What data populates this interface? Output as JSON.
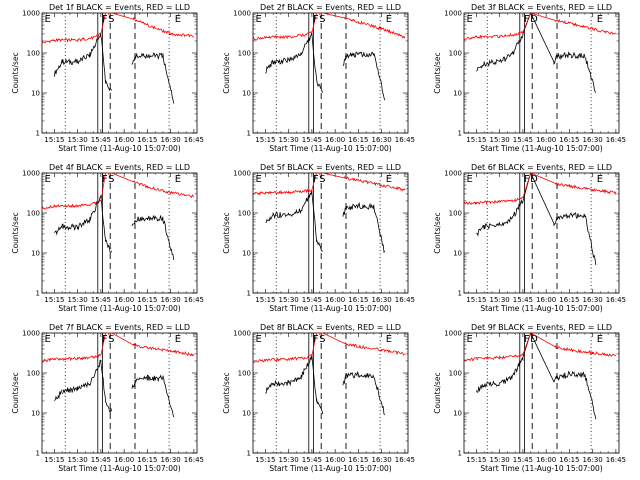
{
  "colors": {
    "events": "#000000",
    "lld": "#ff0000",
    "axes": "#000000",
    "background": "#ffffff"
  },
  "chart_data": [
    {
      "type": "line",
      "title": "Det 1f BLACK = Events, RED = LLD",
      "xlabel": "Start Time (11-Aug-10 15:07:00)",
      "ylabel": "Counts/sec",
      "yscale": "log",
      "ylim": [
        1,
        1000
      ],
      "xlim": [
        "15:07",
        "16:47"
      ],
      "xtick_labels": [
        "15:15",
        "15:30",
        "15:45",
        "16:00",
        "16:15",
        "16:30",
        "16:45"
      ],
      "ytick_labels": [
        "1",
        "10",
        "100",
        "1000"
      ],
      "markers": [
        "E",
        "F",
        "S",
        "E"
      ],
      "grid": false,
      "series": [
        {
          "name": "Events",
          "color": "#000000",
          "x": [
            "15:15",
            "15:20",
            "15:30",
            "15:38",
            "15:45",
            "15:48",
            "15:52",
            "16:05",
            "16:07",
            "16:15",
            "16:25",
            "16:32"
          ],
          "y": [
            30,
            60,
            60,
            90,
            300,
            20,
            10,
            45,
            80,
            85,
            85,
            6
          ]
        },
        {
          "name": "LLD",
          "color": "#ff0000",
          "x": [
            "15:07",
            "15:15",
            "15:30",
            "15:40",
            "15:45",
            "15:48",
            "15:52",
            "16:06",
            "16:15",
            "16:30",
            "16:45"
          ],
          "y": [
            180,
            210,
            210,
            240,
            300,
            1000,
            1000,
            700,
            500,
            300,
            270
          ]
        }
      ]
    },
    {
      "type": "line",
      "title": "Det 2f BLACK = Events, RED = LLD",
      "xlabel": "Start Time (11-Aug-10 15:07:00)",
      "ylabel": "Counts/sec",
      "yscale": "log",
      "ylim": [
        1,
        1000
      ],
      "xlim": [
        "15:07",
        "16:47"
      ],
      "xtick_labels": [
        "15:15",
        "15:30",
        "15:45",
        "16:00",
        "16:15",
        "16:30",
        "16:45"
      ],
      "ytick_labels": [
        "1",
        "10",
        "100",
        "1000"
      ],
      "markers": [
        "E",
        "F",
        "S",
        "E"
      ],
      "grid": false,
      "series": [
        {
          "name": "Events",
          "color": "#000000",
          "x": [
            "15:15",
            "15:20",
            "15:30",
            "15:38",
            "15:45",
            "15:48",
            "15:52",
            "16:05",
            "16:07",
            "16:15",
            "16:25",
            "16:32"
          ],
          "y": [
            35,
            60,
            65,
            95,
            300,
            20,
            10,
            50,
            85,
            90,
            90,
            7
          ]
        },
        {
          "name": "LLD",
          "color": "#ff0000",
          "x": [
            "15:07",
            "15:15",
            "15:30",
            "15:40",
            "15:45",
            "15:48",
            "15:52",
            "16:06",
            "16:15",
            "16:30",
            "16:45"
          ],
          "y": [
            220,
            250,
            250,
            280,
            320,
            1000,
            1000,
            750,
            600,
            400,
            250
          ]
        }
      ]
    },
    {
      "type": "line",
      "title": "Det 3f BLACK = Events, RED = LLD",
      "xlabel": "Start Time (11-Aug-10 15:07:00)",
      "ylabel": "Counts/sec",
      "yscale": "log",
      "ylim": [
        1,
        1000
      ],
      "xlim": [
        "15:07",
        "16:47"
      ],
      "xtick_labels": [
        "15:15",
        "15:30",
        "15:45",
        "16:00",
        "16:15",
        "16:30",
        "16:45"
      ],
      "ytick_labels": [
        "1",
        "10",
        "100",
        "1000"
      ],
      "markers": [
        "E",
        "F",
        "D",
        "E"
      ],
      "grid": false,
      "series": [
        {
          "name": "Events",
          "color": "#000000",
          "x": [
            "15:15",
            "15:20",
            "15:30",
            "15:38",
            "15:45",
            "15:50",
            "16:05",
            "16:07",
            "16:15",
            "16:25",
            "16:32"
          ],
          "y": [
            35,
            55,
            60,
            90,
            300,
            1000,
            60,
            80,
            90,
            85,
            10
          ]
        },
        {
          "name": "LLD",
          "color": "#ff0000",
          "x": [
            "15:07",
            "15:15",
            "15:30",
            "15:40",
            "15:45",
            "15:50",
            "16:06",
            "16:15",
            "16:30",
            "16:45"
          ],
          "y": [
            230,
            250,
            260,
            290,
            330,
            1000,
            650,
            550,
            400,
            300
          ]
        }
      ]
    },
    {
      "type": "line",
      "title": "Det 4f BLACK = Events, RED = LLD",
      "xlabel": "Start Time (11-Aug-10 15:07:00)",
      "ylabel": "Counts/sec",
      "yscale": "log",
      "ylim": [
        1,
        1000
      ],
      "xlim": [
        "15:07",
        "16:47"
      ],
      "xtick_labels": [
        "15:15",
        "15:30",
        "15:45",
        "16:00",
        "16:15",
        "16:30",
        "16:45"
      ],
      "ytick_labels": [
        "1",
        "10",
        "100",
        "1000"
      ],
      "markers": [
        "E",
        "F",
        "S",
        "E"
      ],
      "grid": false,
      "series": [
        {
          "name": "Events",
          "color": "#000000",
          "x": [
            "15:15",
            "15:20",
            "15:30",
            "15:38",
            "15:45",
            "15:48",
            "15:52",
            "16:05",
            "16:07",
            "16:15",
            "16:25",
            "16:32"
          ],
          "y": [
            30,
            45,
            45,
            70,
            250,
            20,
            10,
            45,
            70,
            75,
            75,
            7
          ]
        },
        {
          "name": "LLD",
          "color": "#ff0000",
          "x": [
            "15:07",
            "15:15",
            "15:30",
            "15:40",
            "15:45",
            "15:48",
            "15:52",
            "16:06",
            "16:15",
            "16:30",
            "16:45"
          ],
          "y": [
            130,
            150,
            150,
            170,
            200,
            1000,
            1000,
            600,
            450,
            320,
            260
          ]
        }
      ]
    },
    {
      "type": "line",
      "title": "Det 5f BLACK = Events, RED = LLD",
      "xlabel": "Start Time (11-Aug-10 15:07:00)",
      "ylabel": "Counts/sec",
      "yscale": "log",
      "ylim": [
        1,
        1000
      ],
      "xlim": [
        "15:07",
        "16:47"
      ],
      "xtick_labels": [
        "15:15",
        "15:30",
        "15:45",
        "16:00",
        "16:15",
        "16:30",
        "16:45"
      ],
      "ytick_labels": [
        "1",
        "10",
        "100",
        "1000"
      ],
      "markers": [
        "E",
        "F",
        "S",
        "E"
      ],
      "grid": false,
      "series": [
        {
          "name": "Events",
          "color": "#000000",
          "x": [
            "15:15",
            "15:20",
            "15:30",
            "15:38",
            "15:45",
            "15:48",
            "15:52",
            "16:05",
            "16:07",
            "16:15",
            "16:25",
            "16:32"
          ],
          "y": [
            55,
            90,
            90,
            120,
            350,
            20,
            10,
            80,
            130,
            150,
            140,
            10
          ]
        },
        {
          "name": "LLD",
          "color": "#ff0000",
          "x": [
            "15:07",
            "15:15",
            "15:30",
            "15:40",
            "15:45",
            "15:48",
            "15:52",
            "16:06",
            "16:15",
            "16:30",
            "16:45"
          ],
          "y": [
            300,
            320,
            330,
            350,
            380,
            1000,
            1000,
            750,
            650,
            500,
            380
          ]
        }
      ]
    },
    {
      "type": "line",
      "title": "Det 6f BLACK = Events, RED = LLD",
      "xlabel": "Start Time (11-Aug-10 15:07:00)",
      "ylabel": "Counts/sec",
      "yscale": "log",
      "ylim": [
        1,
        1000
      ],
      "xlim": [
        "15:07",
        "16:47"
      ],
      "xtick_labels": [
        "15:15",
        "15:30",
        "15:45",
        "16:00",
        "16:15",
        "16:30",
        "16:45"
      ],
      "ytick_labels": [
        "1",
        "10",
        "100",
        "1000"
      ],
      "markers": [
        "E",
        "F",
        "D",
        "E"
      ],
      "grid": false,
      "series": [
        {
          "name": "Events",
          "color": "#000000",
          "x": [
            "15:15",
            "15:20",
            "15:30",
            "15:38",
            "15:45",
            "15:50",
            "16:05",
            "16:07",
            "16:15",
            "16:25",
            "16:32"
          ],
          "y": [
            30,
            45,
            50,
            75,
            200,
            1000,
            55,
            70,
            85,
            90,
            5
          ]
        },
        {
          "name": "LLD",
          "color": "#ff0000",
          "x": [
            "15:07",
            "15:15",
            "15:30",
            "15:40",
            "15:45",
            "15:50",
            "16:06",
            "16:15",
            "16:30",
            "16:45"
          ],
          "y": [
            170,
            180,
            190,
            210,
            240,
            1000,
            550,
            470,
            380,
            320
          ]
        }
      ]
    },
    {
      "type": "line",
      "title": "Det 7f BLACK = Events, RED = LLD",
      "xlabel": "Start Time (11-Aug-10 15:07:00)",
      "ylabel": "Counts/sec",
      "yscale": "log",
      "ylim": [
        1,
        1000
      ],
      "xlim": [
        "15:07",
        "16:47"
      ],
      "xtick_labels": [
        "15:15",
        "15:30",
        "15:45",
        "16:00",
        "16:15",
        "16:30",
        "16:45"
      ],
      "ytick_labels": [
        "1",
        "10",
        "100",
        "1000"
      ],
      "markers": [
        "E",
        "F",
        "S",
        "E"
      ],
      "grid": false,
      "series": [
        {
          "name": "Events",
          "color": "#000000",
          "x": [
            "15:15",
            "15:20",
            "15:30",
            "15:38",
            "15:45",
            "15:48",
            "15:52",
            "16:05",
            "16:07",
            "16:15",
            "16:25",
            "16:32"
          ],
          "y": [
            20,
            35,
            40,
            55,
            200,
            20,
            10,
            40,
            60,
            75,
            75,
            8
          ]
        },
        {
          "name": "LLD",
          "color": "#ff0000",
          "x": [
            "15:07",
            "15:15",
            "15:30",
            "15:40",
            "15:45",
            "15:48",
            "15:52",
            "16:06",
            "16:15",
            "16:30",
            "16:45"
          ],
          "y": [
            200,
            220,
            230,
            250,
            280,
            1000,
            1000,
            500,
            430,
            360,
            280
          ]
        }
      ]
    },
    {
      "type": "line",
      "title": "Det 8f BLACK = Events, RED = LLD",
      "xlabel": "Start Time (11-Aug-10 15:07:00)",
      "ylabel": "Counts/sec",
      "yscale": "log",
      "ylim": [
        1,
        1000
      ],
      "xlim": [
        "15:07",
        "16:47"
      ],
      "xtick_labels": [
        "15:15",
        "15:30",
        "15:45",
        "16:00",
        "16:15",
        "16:30",
        "16:45"
      ],
      "ytick_labels": [
        "1",
        "10",
        "100",
        "1000"
      ],
      "markers": [
        "E",
        "F",
        "S",
        "E"
      ],
      "grid": false,
      "series": [
        {
          "name": "Events",
          "color": "#000000",
          "x": [
            "15:15",
            "15:20",
            "15:30",
            "15:38",
            "15:45",
            "15:48",
            "15:52",
            "16:05",
            "16:07",
            "16:15",
            "16:25",
            "16:32"
          ],
          "y": [
            35,
            55,
            55,
            80,
            250,
            20,
            10,
            50,
            85,
            90,
            85,
            9
          ]
        },
        {
          "name": "LLD",
          "color": "#ff0000",
          "x": [
            "15:07",
            "15:15",
            "15:30",
            "15:40",
            "15:45",
            "15:48",
            "15:52",
            "16:06",
            "16:15",
            "16:30",
            "16:45"
          ],
          "y": [
            190,
            210,
            220,
            240,
            270,
            1000,
            1000,
            550,
            460,
            380,
            300
          ]
        }
      ]
    },
    {
      "type": "line",
      "title": "Det 9f BLACK = Events, RED = LLD",
      "xlabel": "Start Time (11-Aug-10 15:07:00)",
      "ylabel": "Counts/sec",
      "yscale": "log",
      "ylim": [
        1,
        1000
      ],
      "xlim": [
        "15:07",
        "16:47"
      ],
      "xtick_labels": [
        "15:15",
        "15:30",
        "15:45",
        "16:00",
        "16:15",
        "16:30",
        "16:45"
      ],
      "ytick_labels": [
        "1",
        "10",
        "100",
        "1000"
      ],
      "markers": [
        "E",
        "F",
        "D",
        "E"
      ],
      "grid": false,
      "series": [
        {
          "name": "Events",
          "color": "#000000",
          "x": [
            "15:15",
            "15:20",
            "15:30",
            "15:38",
            "15:45",
            "15:50",
            "16:05",
            "16:07",
            "16:15",
            "16:25",
            "16:32"
          ],
          "y": [
            35,
            50,
            55,
            75,
            250,
            1000,
            60,
            75,
            95,
            90,
            8
          ]
        },
        {
          "name": "LLD",
          "color": "#ff0000",
          "x": [
            "15:07",
            "15:15",
            "15:30",
            "15:40",
            "15:45",
            "15:50",
            "16:06",
            "16:15",
            "16:30",
            "16:45"
          ],
          "y": [
            210,
            230,
            240,
            260,
            290,
            1000,
            450,
            380,
            320,
            270
          ]
        }
      ]
    }
  ]
}
